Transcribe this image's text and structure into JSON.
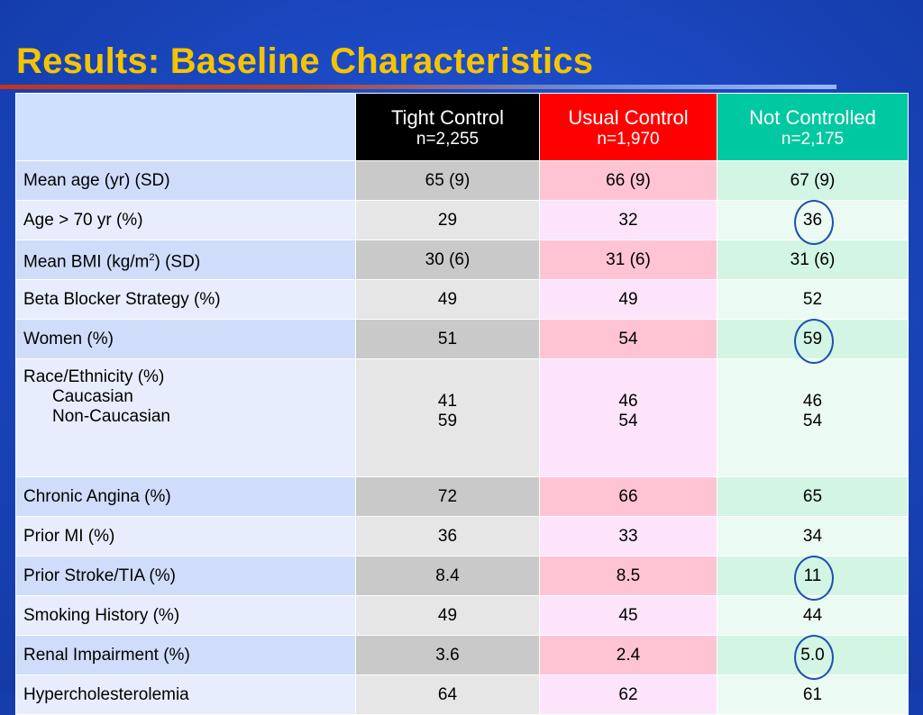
{
  "title": "Results: Baseline Characteristics",
  "colors": {
    "title": "#f5c400",
    "background": "#1c4bc6",
    "tight_header": "#000000",
    "usual_header": "#ff0000",
    "not_controlled_header": "#00c8a0",
    "circle": "#1f4fb0"
  },
  "header": {
    "tight": {
      "name": "Tight Control",
      "n": "n=2,255"
    },
    "usual": {
      "name": "Usual Control",
      "n": "n=1,970"
    },
    "not_controlled": {
      "name": "Not Controlled",
      "n": "n=2,175"
    }
  },
  "rows": [
    {
      "label": "Mean age (yr) (SD)",
      "tight": "65 (9)",
      "usual": "66 (9)",
      "not_controlled": "67 (9)"
    },
    {
      "label": "Age > 70 yr (%)",
      "tight": "29",
      "usual": "32",
      "not_controlled": "36",
      "circled": true
    },
    {
      "label_main": "Mean BMI (kg/m",
      "label_sup": "2",
      "label_end": ") (SD)",
      "tight": "30 (6)",
      "usual": "31 (6)",
      "not_controlled": "31 (6)"
    },
    {
      "label": "Beta Blocker Strategy (%)",
      "tight": "49",
      "usual": "49",
      "not_controlled": "52"
    },
    {
      "label": "Women (%)",
      "tight": "51",
      "usual": "54",
      "not_controlled": "59",
      "circled": true
    },
    {
      "label": "Race/Ethnicity (%)",
      "sub": [
        {
          "label": "Caucasian",
          "tight": "41",
          "usual": "46",
          "not_controlled": "46"
        },
        {
          "label": "Non-Caucasian",
          "tight": "59",
          "usual": "54",
          "not_controlled": "54"
        }
      ]
    },
    {
      "label": "Chronic Angina (%)",
      "tight": "72",
      "usual": "66",
      "not_controlled": "65"
    },
    {
      "label": "Prior MI (%)",
      "tight": "36",
      "usual": "33",
      "not_controlled": "34"
    },
    {
      "label": "Prior Stroke/TIA (%)",
      "tight": "8.4",
      "usual": "8.5",
      "not_controlled": "11",
      "circled": true
    },
    {
      "label": "Smoking History (%)",
      "tight": "49",
      "usual": "45",
      "not_controlled": "44"
    },
    {
      "label": "Renal Impairment (%)",
      "tight": "3.6",
      "usual": "2.4",
      "not_controlled": "5.0",
      "circled": true
    },
    {
      "label": "Hypercholesterolemia",
      "tight": "64",
      "usual": "62",
      "not_controlled": "61"
    }
  ]
}
